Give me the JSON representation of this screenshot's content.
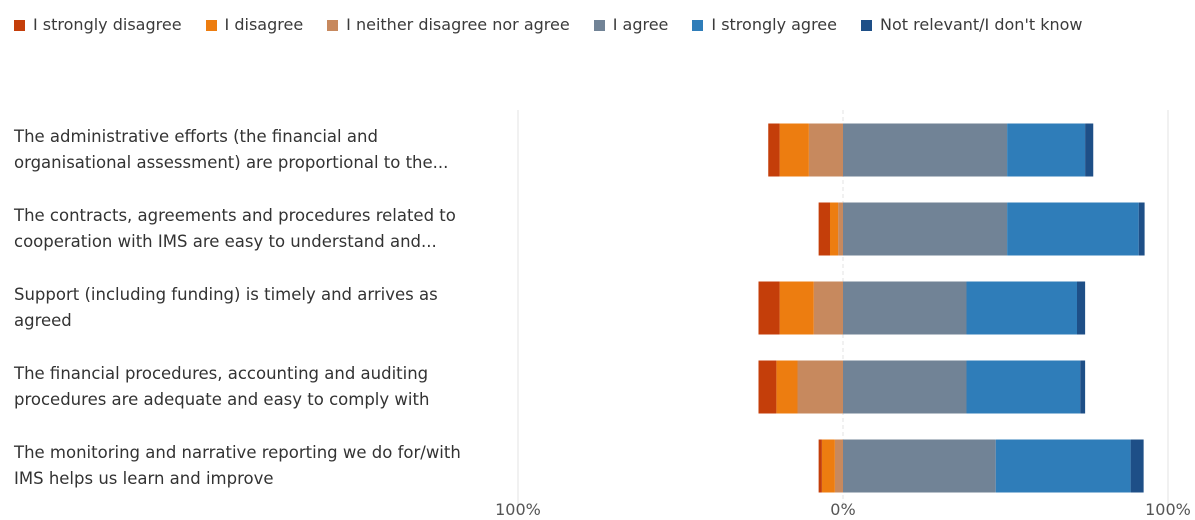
{
  "chart_data": {
    "type": "bar",
    "orientation": "horizontal",
    "stacking": "diverging",
    "title": "",
    "xlabel": "",
    "ylabel": "",
    "xlim": [
      -100,
      100
    ],
    "grid": true,
    "legend_position": "top-left",
    "categories": [
      "The administrative efforts (the financial and organisational assessment) are proportional to the...",
      "The contracts, agreements and procedures related to cooperation with IMS are easy to understand and...",
      "Support (including funding) is timely and arrives as agreed",
      "The financial procedures, accounting and auditing procedures are adequate and easy to comply with",
      "The monitoring and narrative reporting we do for/with IMS helps us learn and improve"
    ],
    "series": [
      {
        "name": "I strongly disagree",
        "color": "#c43e0a",
        "side": "negative",
        "values": [
          3.5,
          3.5,
          6.5,
          5.5,
          1
        ]
      },
      {
        "name": "I disagree",
        "color": "#ed7d10",
        "side": "negative",
        "values": [
          9,
          2.5,
          10.5,
          6.5,
          4
        ]
      },
      {
        "name": "I neither disagree nor agree",
        "color": "#c7895e",
        "side": "negative",
        "values": [
          10.5,
          1.5,
          9,
          14,
          2.5
        ]
      },
      {
        "name": "I agree",
        "color": "#718396",
        "side": "positive",
        "values": [
          50.5,
          50.5,
          38,
          38,
          47
        ]
      },
      {
        "name": "I strongly agree",
        "color": "#2f7db9",
        "side": "positive",
        "values": [
          24,
          40.5,
          34,
          35,
          41.5
        ]
      },
      {
        "name": "Not relevant/I don't know",
        "color": "#1e4f87",
        "side": "positive",
        "values": [
          2.5,
          1.8,
          2.5,
          1.5,
          4
        ]
      }
    ],
    "ticks": [
      {
        "value": -100,
        "label": "100%"
      },
      {
        "value": 0,
        "label": "0%"
      },
      {
        "value": 100,
        "label": "100%"
      }
    ]
  }
}
